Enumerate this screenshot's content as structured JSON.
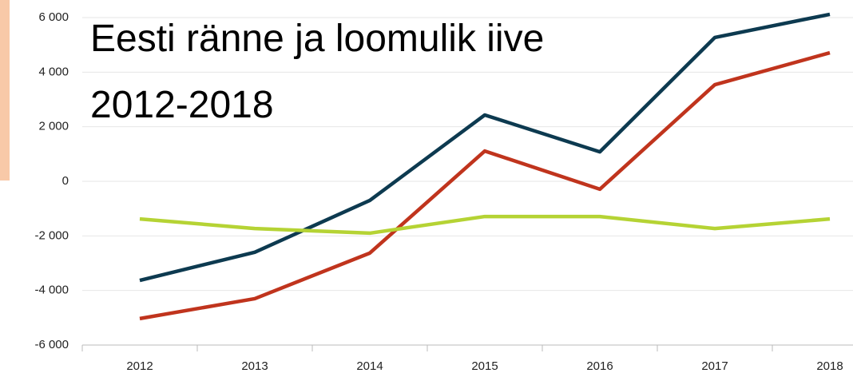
{
  "chart_data": {
    "type": "line",
    "title_lines": [
      "Eesti ränne ja loomulik iive",
      "2012-2018"
    ],
    "categories": [
      "2012",
      "2013",
      "2014",
      "2015",
      "2016",
      "2017",
      "2018"
    ],
    "series": [
      {
        "color": "#0d3a50",
        "values": [
          -3630,
          -2600,
          -700,
          2430,
          1080,
          5270,
          6120
        ]
      },
      {
        "color": "#c0341d",
        "values": [
          -5030,
          -4300,
          -2630,
          1110,
          -290,
          3540,
          4710
        ]
      },
      {
        "color": "#b5d334",
        "values": [
          -1380,
          -1730,
          -1900,
          -1290,
          -1290,
          -1730,
          -1380
        ]
      }
    ],
    "ylim": [
      -6000,
      6000
    ],
    "yticks": [
      {
        "value": -6000,
        "label": "-6 000"
      },
      {
        "value": -4000,
        "label": "-4 000"
      },
      {
        "value": -2000,
        "label": "-2 000"
      },
      0,
      {
        "value": 2000,
        "label": "2 000"
      },
      {
        "value": 4000,
        "label": "4 000"
      },
      {
        "value": 6000,
        "label": "6 000"
      }
    ],
    "grid": true
  }
}
